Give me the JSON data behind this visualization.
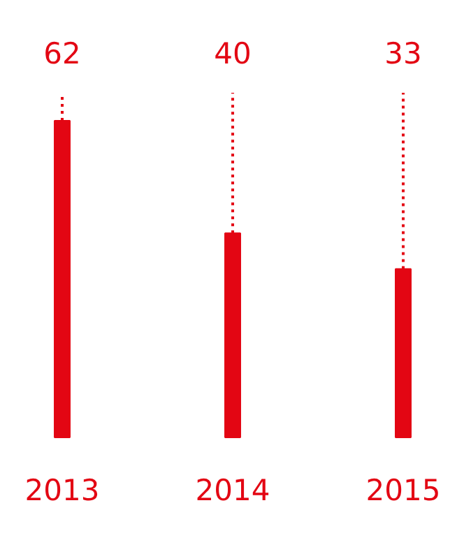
{
  "chart_data": {
    "type": "bar",
    "categories": [
      "2013",
      "2014",
      "2015"
    ],
    "values": [
      62,
      40,
      33
    ],
    "color": "#e30613",
    "data_labels": true
  }
}
